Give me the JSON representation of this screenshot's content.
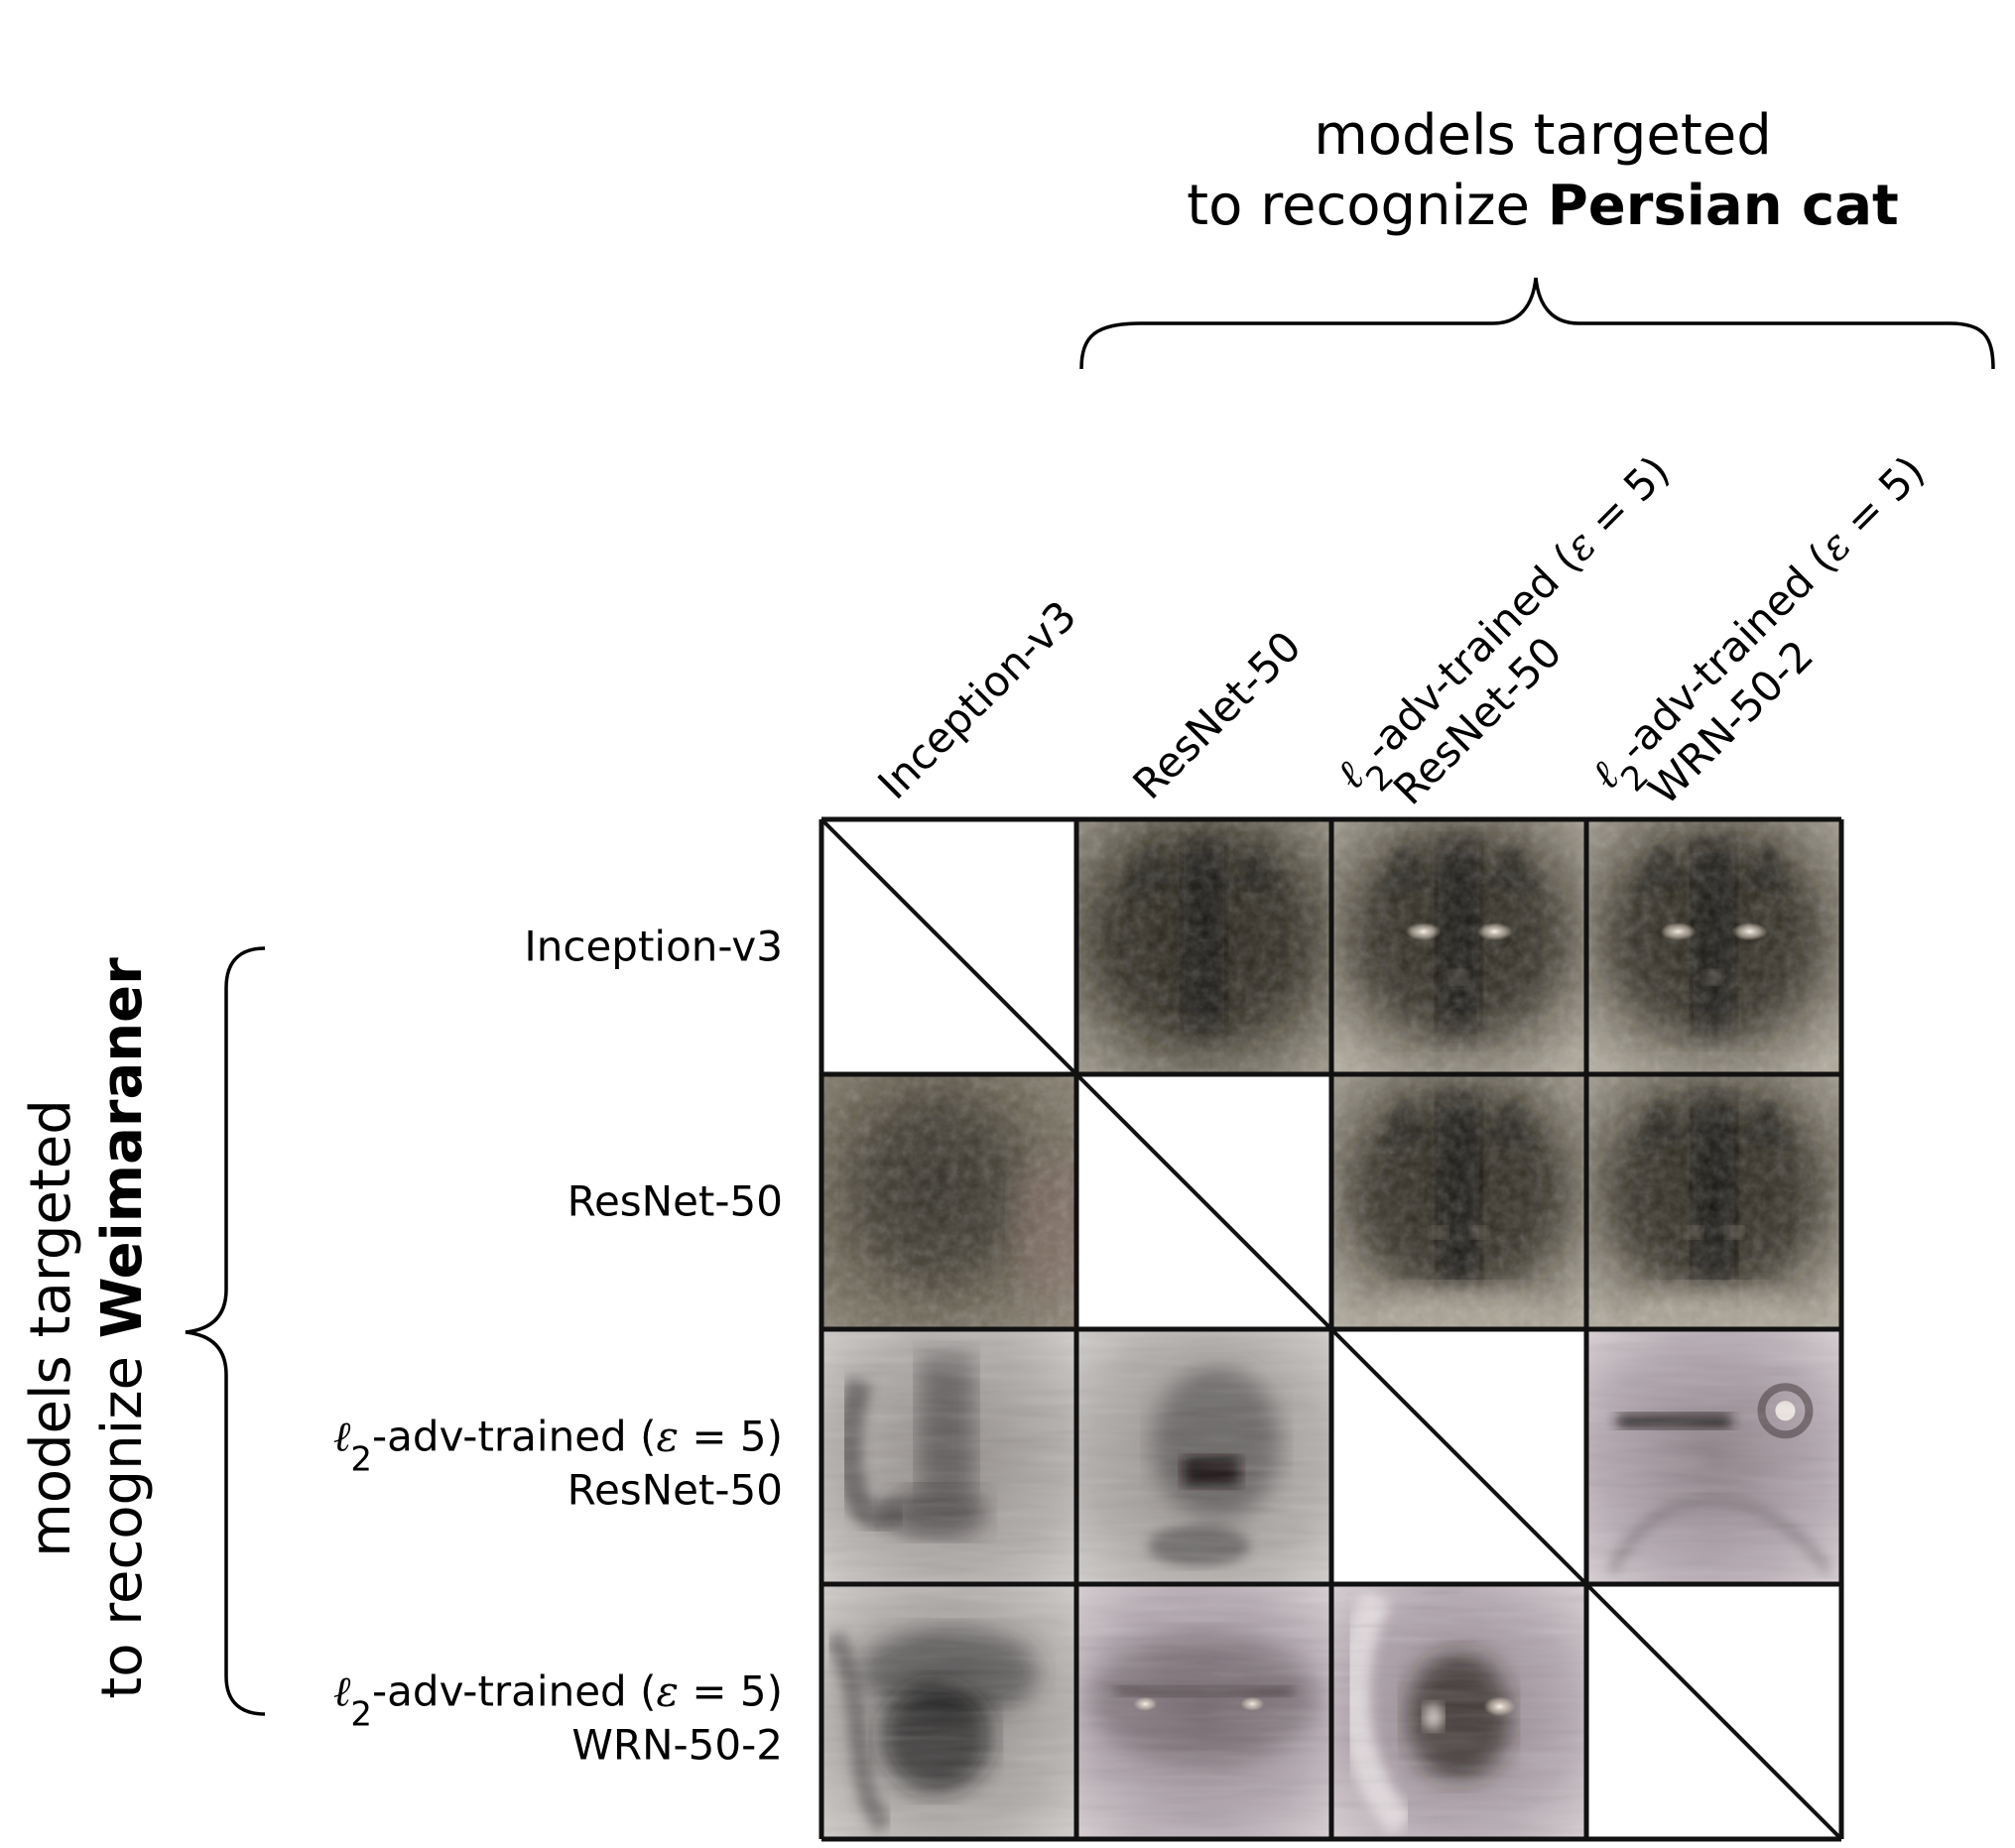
{
  "top_group": {
    "line1": "models targeted",
    "line2_prefix": "to recognize ",
    "line2_target": "Persian cat"
  },
  "left_group": {
    "line1": "models targeted",
    "line2_prefix": "to recognize ",
    "line2_target": "Weimaraner"
  },
  "models": [
    {
      "id": "inception",
      "lines": [
        "Inception-v3"
      ],
      "adv": false
    },
    {
      "id": "resnet",
      "lines": [
        "ResNet-50"
      ],
      "adv": false
    },
    {
      "id": "adv-resnet",
      "lines": [
        "-adv-trained (",
        "ResNet-50"
      ],
      "adv": true
    },
    {
      "id": "adv-wrn",
      "lines": [
        "-adv-trained (",
        "WRN-50-2"
      ],
      "adv": true
    }
  ],
  "adv_symbols": {
    "norm": "ℓ",
    "norm_sub": "2",
    "eps": "ε",
    "eps_tail": " = 5)"
  },
  "cells": [
    [
      "diagonal",
      "cat-blurry",
      "cat-eyes",
      "cat-eyes"
    ],
    [
      "dog-blurry",
      "diagonal",
      "cat-dark",
      "cat-dark"
    ],
    [
      "dog-floppy-ears",
      "dog-snout",
      "diagonal",
      "dog-closeup-eye"
    ],
    [
      "dog-muzzle",
      "dog-eyes",
      "dog-ear-eye",
      "diagonal"
    ]
  ],
  "colors": {
    "frame": "#111111",
    "text": "#000000",
    "cat_tone": "#5a5549",
    "dog_tone": "#9c9898"
  }
}
